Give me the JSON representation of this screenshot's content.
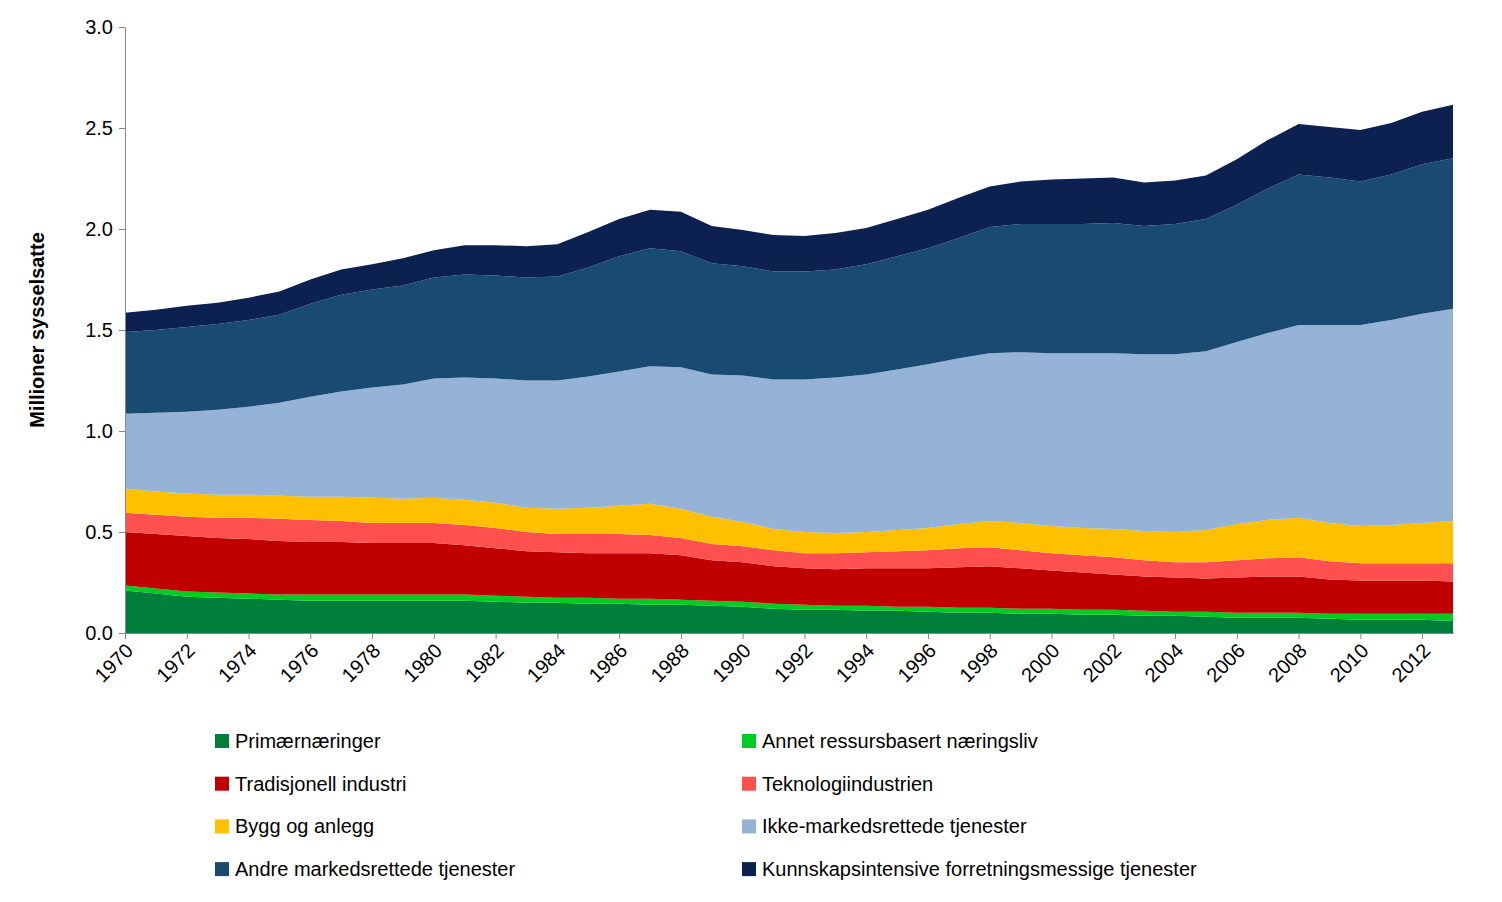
{
  "chart_data": {
    "type": "area",
    "stacked": true,
    "y_label": "Millioner sysselsatte",
    "x": [
      1970,
      1971,
      1972,
      1973,
      1974,
      1975,
      1976,
      1977,
      1978,
      1979,
      1980,
      1981,
      1982,
      1983,
      1984,
      1985,
      1986,
      1987,
      1988,
      1989,
      1990,
      1991,
      1992,
      1993,
      1994,
      1995,
      1996,
      1997,
      1998,
      1999,
      2000,
      2001,
      2002,
      2003,
      2004,
      2005,
      2006,
      2007,
      2008,
      2009,
      2010,
      2011,
      2012,
      2013
    ],
    "xlim": [
      1970,
      2013
    ],
    "xticks": [
      1970,
      1972,
      1974,
      1976,
      1978,
      1980,
      1982,
      1984,
      1986,
      1988,
      1990,
      1992,
      1994,
      1996,
      1998,
      2000,
      2002,
      2004,
      2006,
      2008,
      2010,
      2012
    ],
    "ylim": [
      0,
      3
    ],
    "yticks": [
      {
        "value": 0,
        "label": "0.0"
      },
      0.5,
      {
        "value": 1,
        "label": "1.0"
      },
      1.5,
      {
        "value": 2,
        "label": "2.0"
      },
      2.5,
      {
        "value": 3,
        "label": "3.0"
      }
    ],
    "grid": false,
    "legend": "bottom",
    "series": [
      {
        "name": "Primærnæringer",
        "color": "#007f3a",
        "values": [
          0.21,
          0.195,
          0.18,
          0.175,
          0.17,
          0.165,
          0.16,
          0.16,
          0.16,
          0.16,
          0.16,
          0.16,
          0.155,
          0.15,
          0.15,
          0.145,
          0.145,
          0.14,
          0.14,
          0.135,
          0.13,
          0.12,
          0.115,
          0.115,
          0.11,
          0.11,
          0.105,
          0.1,
          0.1,
          0.095,
          0.095,
          0.09,
          0.09,
          0.085,
          0.085,
          0.08,
          0.075,
          0.075,
          0.075,
          0.07,
          0.065,
          0.065,
          0.065,
          0.06
        ]
      },
      {
        "name": "Annet ressursbasert næringsliv",
        "color": "#00cc22",
        "values": [
          0.025,
          0.025,
          0.025,
          0.025,
          0.025,
          0.025,
          0.03,
          0.03,
          0.03,
          0.03,
          0.03,
          0.03,
          0.03,
          0.03,
          0.025,
          0.03,
          0.025,
          0.03,
          0.025,
          0.025,
          0.025,
          0.025,
          0.025,
          0.02,
          0.025,
          0.02,
          0.025,
          0.025,
          0.025,
          0.025,
          0.025,
          0.025,
          0.025,
          0.025,
          0.02,
          0.025,
          0.025,
          0.025,
          0.025,
          0.025,
          0.03,
          0.03,
          0.03,
          0.035
        ]
      },
      {
        "name": "Tradisjonell industri",
        "color": "#c00000",
        "values": [
          0.265,
          0.27,
          0.275,
          0.27,
          0.27,
          0.265,
          0.26,
          0.26,
          0.255,
          0.255,
          0.255,
          0.245,
          0.235,
          0.225,
          0.225,
          0.22,
          0.225,
          0.225,
          0.22,
          0.2,
          0.195,
          0.185,
          0.18,
          0.18,
          0.185,
          0.19,
          0.19,
          0.2,
          0.205,
          0.2,
          0.19,
          0.185,
          0.175,
          0.17,
          0.17,
          0.165,
          0.175,
          0.18,
          0.18,
          0.17,
          0.165,
          0.165,
          0.165,
          0.16
        ]
      },
      {
        "name": "Teknologiindustrien",
        "color": "#ff5050",
        "values": [
          0.095,
          0.095,
          0.095,
          0.1,
          0.105,
          0.11,
          0.11,
          0.105,
          0.1,
          0.1,
          0.1,
          0.1,
          0.1,
          0.095,
          0.09,
          0.095,
          0.095,
          0.09,
          0.085,
          0.08,
          0.08,
          0.08,
          0.075,
          0.08,
          0.08,
          0.085,
          0.09,
          0.095,
          0.095,
          0.09,
          0.085,
          0.085,
          0.085,
          0.08,
          0.075,
          0.08,
          0.085,
          0.09,
          0.095,
          0.09,
          0.085,
          0.085,
          0.085,
          0.09
        ]
      },
      {
        "name": "Bygg og anlegg",
        "color": "#ffc000",
        "values": [
          0.12,
          0.115,
          0.115,
          0.115,
          0.115,
          0.115,
          0.115,
          0.12,
          0.125,
          0.12,
          0.125,
          0.125,
          0.125,
          0.12,
          0.125,
          0.13,
          0.14,
          0.155,
          0.145,
          0.135,
          0.12,
          0.105,
          0.105,
          0.1,
          0.1,
          0.105,
          0.11,
          0.12,
          0.13,
          0.135,
          0.135,
          0.135,
          0.14,
          0.145,
          0.15,
          0.16,
          0.18,
          0.19,
          0.195,
          0.19,
          0.185,
          0.19,
          0.2,
          0.21
        ]
      },
      {
        "name": "Ikke-markedsrettede tjenester",
        "color": "#95b3d7",
        "values": [
          0.37,
          0.39,
          0.405,
          0.42,
          0.435,
          0.46,
          0.495,
          0.52,
          0.545,
          0.565,
          0.59,
          0.605,
          0.615,
          0.63,
          0.635,
          0.65,
          0.665,
          0.68,
          0.7,
          0.705,
          0.725,
          0.74,
          0.755,
          0.77,
          0.78,
          0.795,
          0.81,
          0.82,
          0.83,
          0.845,
          0.855,
          0.865,
          0.87,
          0.875,
          0.88,
          0.885,
          0.9,
          0.925,
          0.955,
          0.98,
          0.995,
          1.015,
          1.035,
          1.05
        ]
      },
      {
        "name": "Andre markedsrettede tjenester",
        "color": "#184a72",
        "values": [
          0.405,
          0.41,
          0.42,
          0.425,
          0.43,
          0.435,
          0.46,
          0.48,
          0.485,
          0.49,
          0.5,
          0.51,
          0.51,
          0.51,
          0.515,
          0.54,
          0.57,
          0.585,
          0.575,
          0.55,
          0.54,
          0.535,
          0.535,
          0.535,
          0.545,
          0.56,
          0.575,
          0.595,
          0.625,
          0.635,
          0.64,
          0.64,
          0.645,
          0.635,
          0.645,
          0.655,
          0.68,
          0.715,
          0.745,
          0.73,
          0.71,
          0.72,
          0.74,
          0.745
        ]
      },
      {
        "name": "Kunnskapsintensive forretningsmessige tjenester",
        "color": "#0c2150",
        "values": [
          0.095,
          0.1,
          0.105,
          0.105,
          0.11,
          0.115,
          0.12,
          0.125,
          0.125,
          0.135,
          0.135,
          0.145,
          0.15,
          0.155,
          0.16,
          0.175,
          0.185,
          0.19,
          0.195,
          0.185,
          0.18,
          0.18,
          0.175,
          0.18,
          0.18,
          0.185,
          0.19,
          0.2,
          0.2,
          0.21,
          0.22,
          0.225,
          0.225,
          0.215,
          0.215,
          0.215,
          0.225,
          0.24,
          0.25,
          0.25,
          0.255,
          0.255,
          0.26,
          0.265
        ]
      }
    ]
  }
}
